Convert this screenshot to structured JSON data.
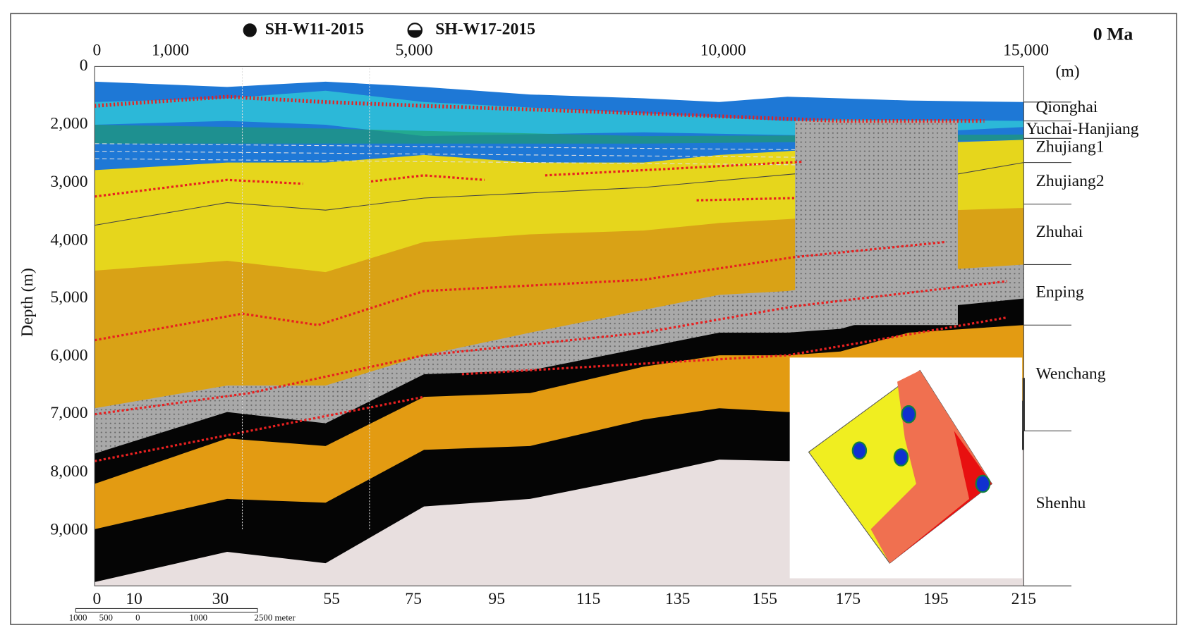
{
  "legend": [
    "SH-W11-2015",
    "SH-W17-2015"
  ],
  "age": "0 Ma",
  "top_axis": {
    "ticks": [
      "0",
      "1,000",
      "5,000",
      "10,000",
      "15,000"
    ],
    "unit": "(m)"
  },
  "left_axis": {
    "title": "Depth (m)",
    "ticks": [
      "0",
      "2,000",
      "3,000",
      "4,000",
      "5,000",
      "6,000",
      "7,000",
      "8,000",
      "9,000"
    ]
  },
  "bottom_axis": {
    "ticks": [
      "0",
      "10",
      "30",
      "55",
      "75",
      "95",
      "115",
      "135",
      "155",
      "175",
      "195",
      "215"
    ]
  },
  "formations": [
    "Qionghai",
    "Yuchai-Hanjiang",
    "Zhujiang1",
    "Zhujiang2",
    "Zhuhai",
    "Enping",
    "Wenchang",
    "Shenhu"
  ],
  "scale_bar": {
    "labels": [
      "1000",
      "500",
      "0",
      "1000",
      "2500 meter"
    ]
  }
}
